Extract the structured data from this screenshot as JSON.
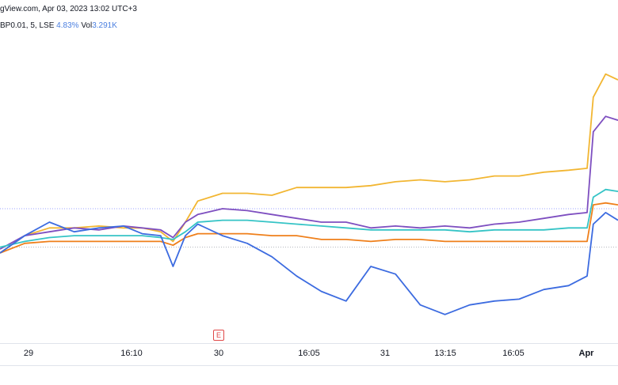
{
  "header": {
    "source_line": "gView.com, Apr 03, 2023 13:02 UTC+3",
    "symbol_info": "BP0.01, 5, LSE",
    "change_pct": "4.83%",
    "vol_label": "Vol",
    "vol_value": "3.291K"
  },
  "colors": {
    "yellow": "#f2b632",
    "purple": "#7e4fc0",
    "cyan": "#35c4c6",
    "orange": "#ef7f1a",
    "blue": "#3c6be0",
    "ref_line": "#9aa0ff",
    "base_line": "#b0b3bb"
  },
  "earnings_marker": "E",
  "chart_data": {
    "type": "line",
    "x_labels": [
      "29",
      "16:10",
      "30",
      "16:05",
      "31",
      "13:15",
      "16:05",
      "Apr"
    ],
    "y_range": [
      -50,
      100
    ],
    "reference_level": 10,
    "base_level": -10,
    "x": [
      0,
      4,
      8,
      12,
      16,
      20,
      23,
      26,
      28,
      30,
      32,
      36,
      40,
      44,
      48,
      52,
      56,
      60,
      64,
      68,
      72,
      76,
      80,
      84,
      88,
      92,
      95,
      96,
      98,
      100
    ],
    "series": [
      {
        "color_key": "yellow",
        "values": [
          -13,
          -4,
          0,
          0,
          1,
          0,
          0,
          -2,
          -7,
          3,
          14,
          18,
          18,
          17,
          21,
          21,
          21,
          22,
          24,
          25,
          24,
          25,
          27,
          27,
          29,
          30,
          31,
          68,
          80,
          77
        ]
      },
      {
        "color_key": "purple",
        "values": [
          -11,
          -4,
          -2,
          0,
          -1,
          1,
          0,
          -1,
          -5,
          3,
          7,
          10,
          9,
          7,
          5,
          3,
          3,
          0,
          1,
          0,
          1,
          0,
          2,
          3,
          5,
          7,
          8,
          50,
          58,
          56
        ]
      },
      {
        "color_key": "cyan",
        "values": [
          -10,
          -7,
          -5,
          -4,
          -4,
          -4,
          -4,
          -5,
          -6,
          -2,
          3,
          4,
          4,
          3,
          2,
          1,
          0,
          -1,
          -1,
          -1,
          -1,
          -2,
          -1,
          -1,
          -1,
          0,
          0,
          16,
          20,
          19
        ]
      },
      {
        "color_key": "orange",
        "values": [
          -13,
          -8,
          -7,
          -7,
          -7,
          -7,
          -7,
          -7,
          -9,
          -5,
          -3,
          -3,
          -3,
          -4,
          -4,
          -6,
          -6,
          -7,
          -6,
          -6,
          -7,
          -7,
          -7,
          -7,
          -7,
          -7,
          -7,
          12,
          13,
          12
        ]
      },
      {
        "color_key": "blue",
        "values": [
          -13,
          -4,
          3,
          -2,
          0,
          1,
          -3,
          -4,
          -20,
          -4,
          2,
          -4,
          -8,
          -15,
          -25,
          -33,
          -38,
          -20,
          -24,
          -40,
          -45,
          -40,
          -38,
          -37,
          -32,
          -30,
          -25,
          2,
          8,
          4
        ]
      }
    ]
  }
}
